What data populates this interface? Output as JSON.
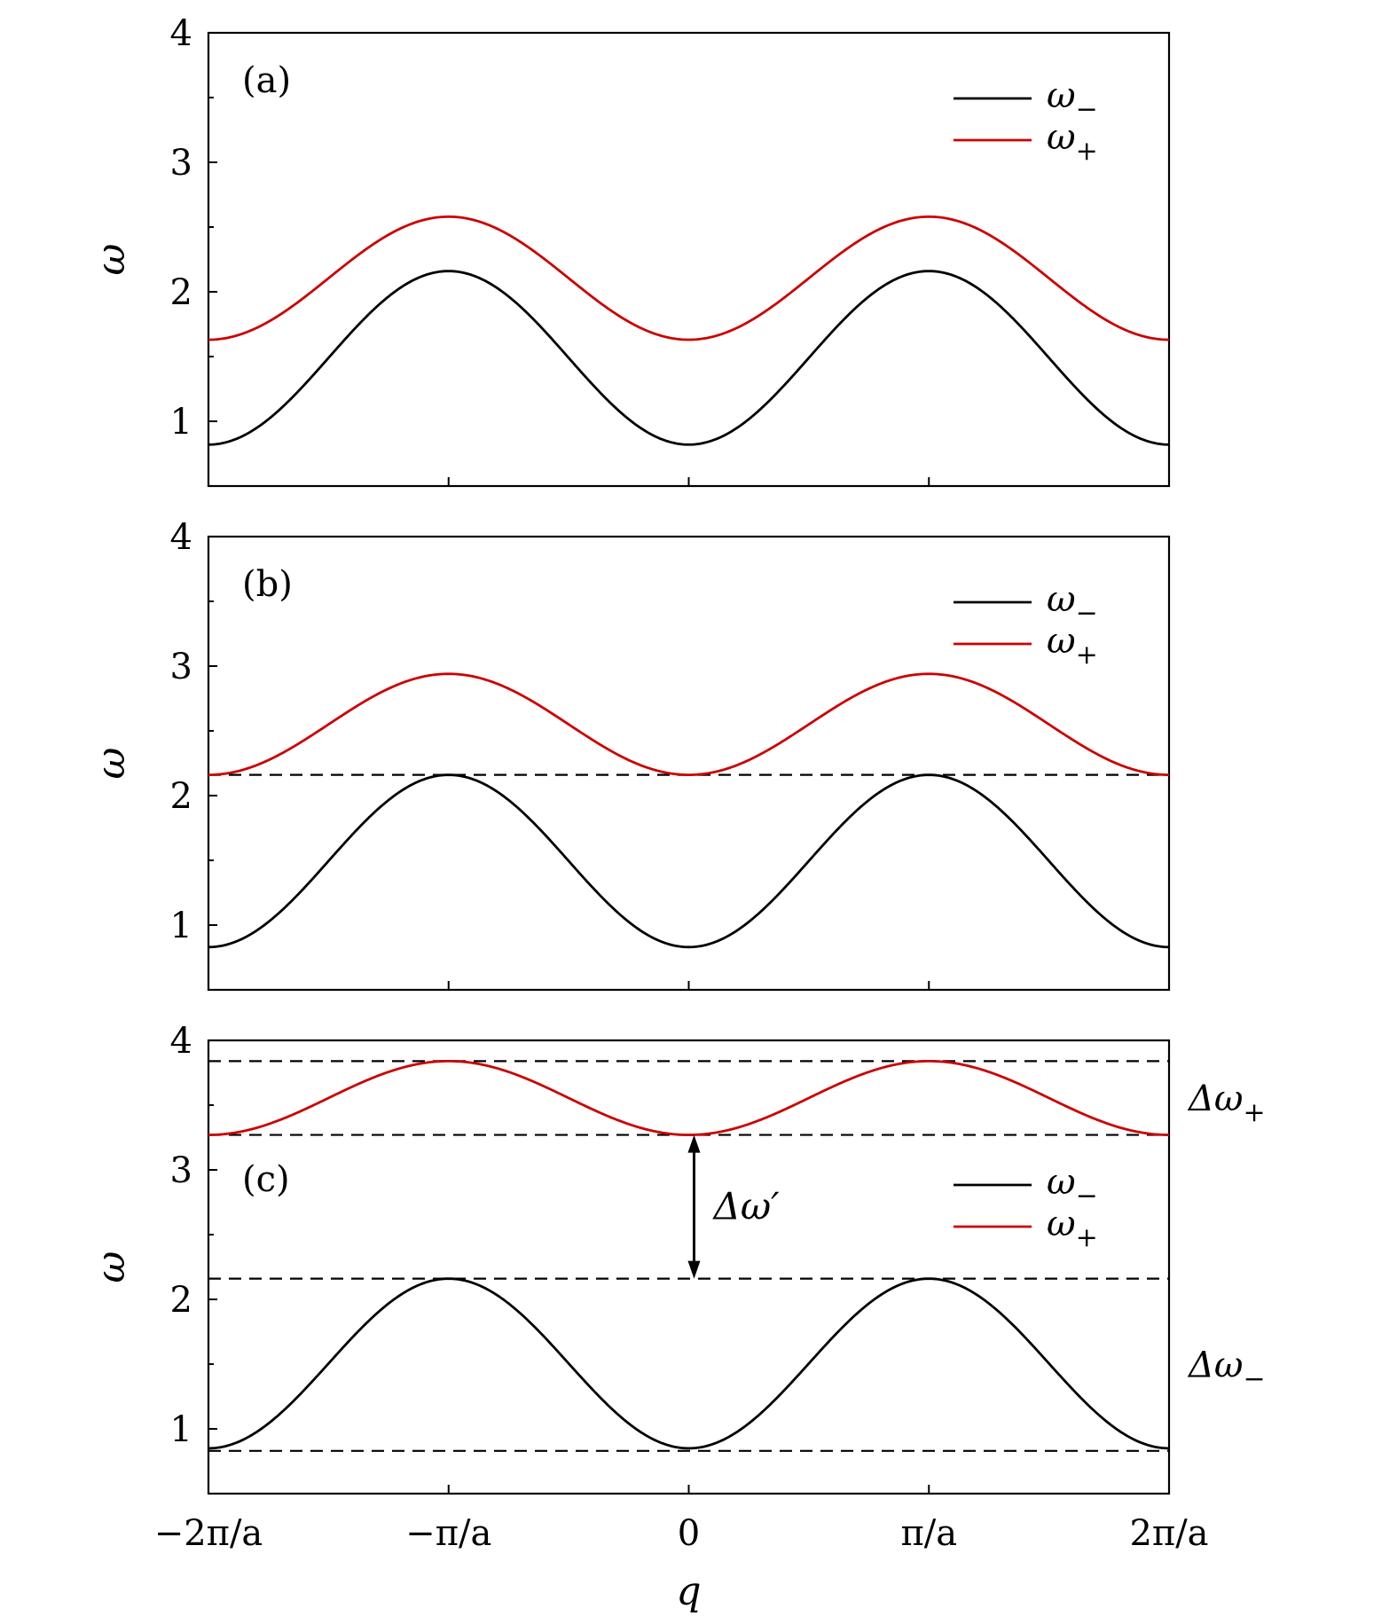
{
  "chart_data": [
    {
      "type": "line",
      "panel_label": "(a)",
      "ylabel": "ω",
      "xlim": [
        -6.2832,
        6.2832
      ],
      "ylim": [
        0.5,
        4.0
      ],
      "yticks": [
        1,
        2,
        3,
        4
      ],
      "ytick_labels": [
        "1",
        "2",
        "3",
        "4"
      ],
      "x_function": "w(q) = mid + amp * sin^2(q/2), q in [-2π, 2π]",
      "series": [
        {
          "name": "ω−",
          "color": "#000000",
          "min": 0.82,
          "max": 2.16
        },
        {
          "name": "ω+",
          "color": "#cc0000",
          "min": 1.63,
          "max": 2.58
        }
      ],
      "hlines": [],
      "legend": {
        "placement": "top-right",
        "entries": [
          "ω−",
          "ω+"
        ]
      }
    },
    {
      "type": "line",
      "panel_label": "(b)",
      "ylabel": "ω",
      "xlim": [
        -6.2832,
        6.2832
      ],
      "ylim": [
        0.5,
        4.0
      ],
      "yticks": [
        1,
        2,
        3,
        4
      ],
      "ytick_labels": [
        "1",
        "2",
        "3",
        "4"
      ],
      "series": [
        {
          "name": "ω−",
          "color": "#000000",
          "min": 0.83,
          "max": 2.16
        },
        {
          "name": "ω+",
          "color": "#cc0000",
          "min": 2.16,
          "max": 2.94
        }
      ],
      "hlines": [
        2.16
      ],
      "legend": {
        "placement": "top-right",
        "entries": [
          "ω−",
          "ω+"
        ]
      }
    },
    {
      "type": "line",
      "panel_label": "(c)",
      "ylabel": "ω",
      "xlabel": "q",
      "xlim": [
        -6.2832,
        6.2832
      ],
      "ylim": [
        0.5,
        4.0
      ],
      "yticks": [
        1,
        2,
        3,
        4
      ],
      "ytick_labels": [
        "1",
        "2",
        "3",
        "4"
      ],
      "xticks": [
        -6.2832,
        -3.1416,
        0,
        3.1416,
        6.2832
      ],
      "xtick_labels": [
        "−2π/a",
        "−π/a",
        "0",
        "π/a",
        "2π/a"
      ],
      "series": [
        {
          "name": "ω−",
          "color": "#000000",
          "min": 0.85,
          "max": 2.16
        },
        {
          "name": "ω+",
          "color": "#cc0000",
          "min": 3.27,
          "max": 3.84
        }
      ],
      "hlines": [
        3.84,
        3.27,
        2.16,
        0.83
      ],
      "legend": {
        "placement": "center-right",
        "entries": [
          "ω−",
          "ω+"
        ]
      },
      "annotations": {
        "delta_plus": "Δω+",
        "delta_minus": "Δω−",
        "delta_prime": "Δω′",
        "arrow_x": 0,
        "arrow_from": 2.16,
        "arrow_to": 3.27
      }
    }
  ]
}
